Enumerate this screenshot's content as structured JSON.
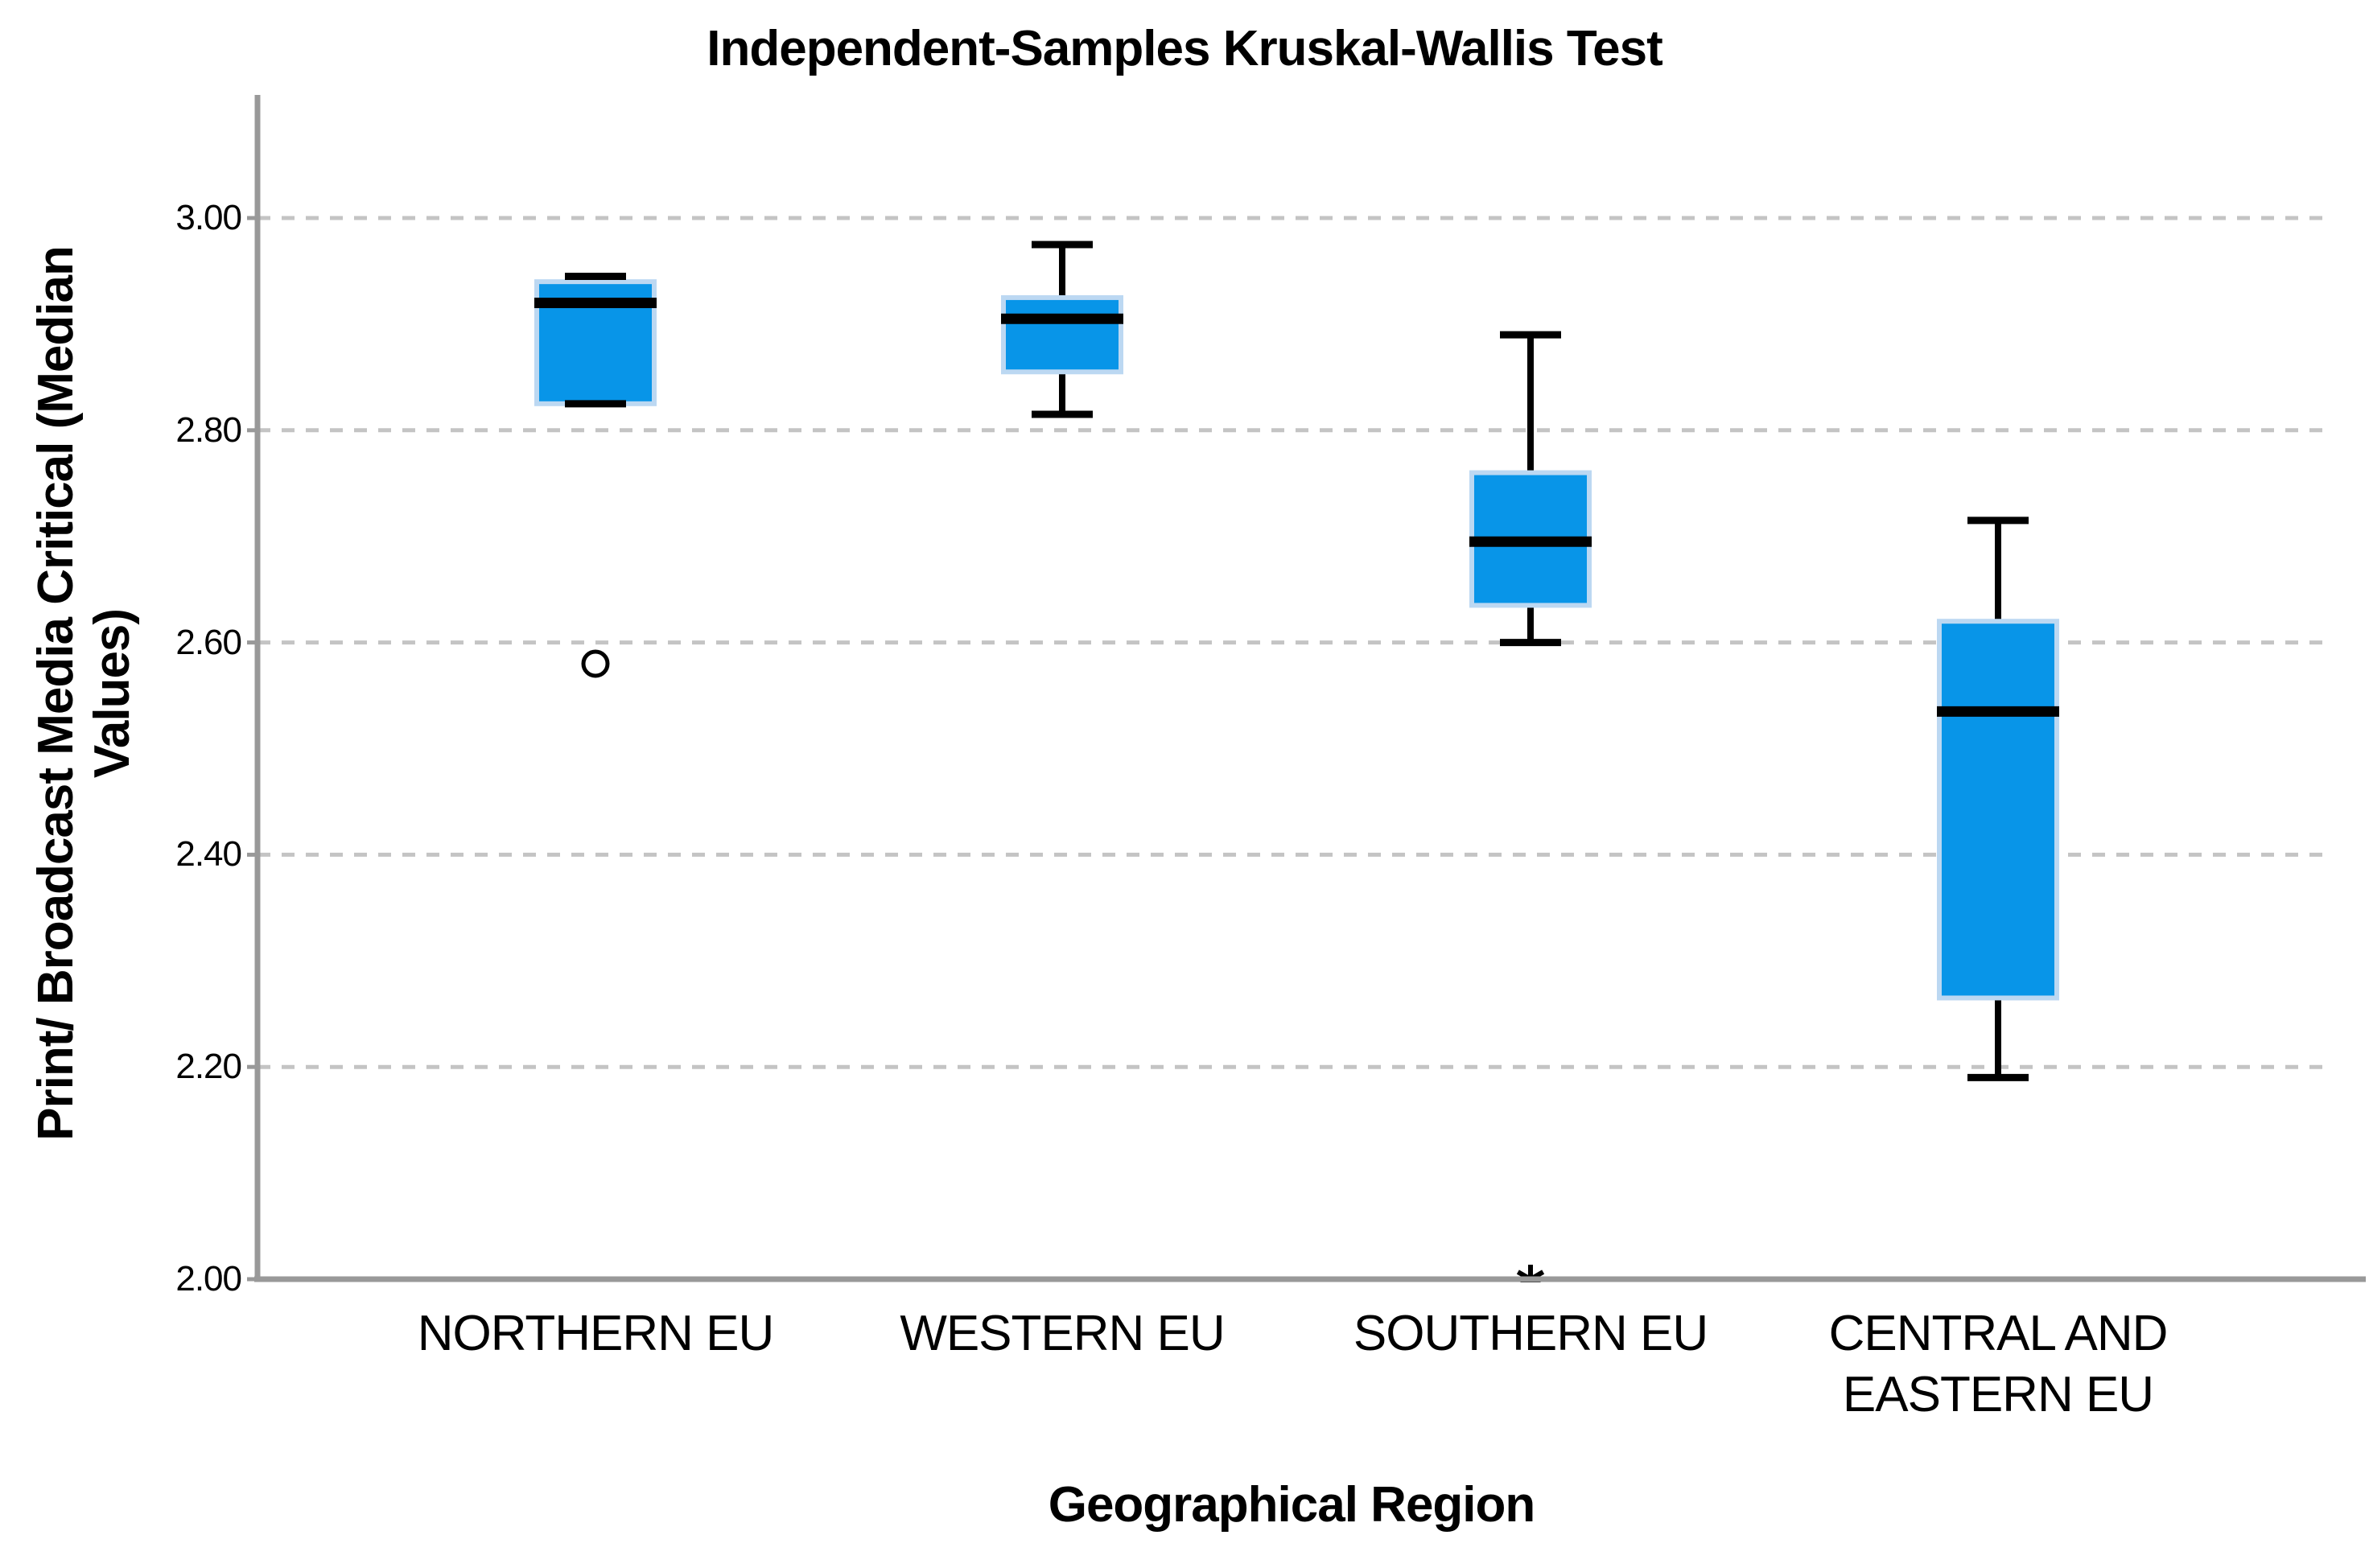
{
  "chart_data": {
    "type": "boxplot",
    "title": "Independent-Samples Kruskal-Wallis Test",
    "xlabel": "Geographical Region",
    "ylabel": "Print/ Broadcast Media Critical (Median Values)",
    "ylabel_lines": [
      "Print/ Broadcast Media Critical (Median",
      "Values)"
    ],
    "ylim": [
      2.0,
      3.115
    ],
    "grid": "horizontal dashed gridlines at each y tick; no top/right frame",
    "legend": "none",
    "y_ticks": [
      {
        "value": 3.0,
        "label": "3.00"
      },
      {
        "value": 2.8,
        "label": "2.80"
      },
      {
        "value": 2.6,
        "label": "2.60"
      },
      {
        "value": 2.4,
        "label": "2.40"
      },
      {
        "value": 2.2,
        "label": "2.20"
      },
      {
        "value": 2.0,
        "label": "2.00"
      }
    ],
    "categories": [
      "NORTHERN EU",
      "WESTERN EU",
      "SOUTHERN EU",
      "CENTRAL AND EASTERN EU"
    ],
    "category_label_lines": [
      [
        "NORTHERN EU"
      ],
      [
        "WESTERN EU"
      ],
      [
        "SOUTHERN EU"
      ],
      [
        "CENTRAL AND",
        "EASTERN EU"
      ]
    ],
    "series": [
      {
        "category": "NORTHERN EU",
        "whisker_low": 2.825,
        "q1": 2.825,
        "median": 2.92,
        "q3": 2.94,
        "whisker_high": 2.945,
        "outliers": [
          {
            "value": 2.58,
            "marker": "circle"
          }
        ]
      },
      {
        "category": "WESTERN EU",
        "whisker_low": 2.815,
        "q1": 2.855,
        "median": 2.905,
        "q3": 2.925,
        "whisker_high": 2.975,
        "outliers": []
      },
      {
        "category": "SOUTHERN EU",
        "whisker_low": 2.6,
        "q1": 2.635,
        "median": 2.695,
        "q3": 2.76,
        "whisker_high": 2.89,
        "outliers": [
          {
            "value": 2.0,
            "marker": "asterisk"
          }
        ]
      },
      {
        "category": "CENTRAL AND EASTERN EU",
        "whisker_low": 2.19,
        "q1": 2.265,
        "median": 2.535,
        "q3": 2.62,
        "whisker_high": 2.715,
        "outliers": []
      }
    ],
    "colors": {
      "box_fill": "#0895E8",
      "box_border": "#BCD8F2",
      "median_line": "#000000",
      "whisker": "#000000",
      "outlier": "#000000",
      "gridline": "#C4C4C4",
      "axis_line": "#999999",
      "text": "#000000",
      "background": "#FFFFFF"
    }
  }
}
